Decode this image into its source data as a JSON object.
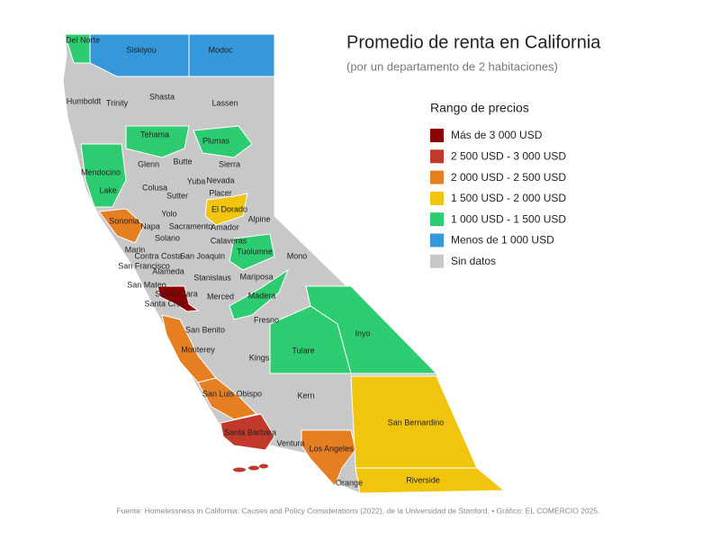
{
  "header": {
    "title": "Promedio de renta en California",
    "subtitle": "(por un departamento de 2 habitaciones)"
  },
  "legend": {
    "title": "Rango de precios",
    "items": [
      {
        "label": "Más de 3 000 USD",
        "color": "#8b0000"
      },
      {
        "label": "2 500 USD - 3 000 USD",
        "color": "#c0392b"
      },
      {
        "label": "2 000 USD - 2 500 USD",
        "color": "#e67e22"
      },
      {
        "label": "1 500 USD - 2 000 USD",
        "color": "#f1c40f"
      },
      {
        "label": "1 000 USD - 1 500 USD",
        "color": "#2ecc71"
      },
      {
        "label": "Menos de 1 000 USD",
        "color": "#3498db"
      },
      {
        "label": "Sin datos",
        "color": "#c8c8c8"
      }
    ]
  },
  "counties": [
    {
      "name": "Del Norte",
      "color": "#2ecc71"
    },
    {
      "name": "Siskiyou",
      "color": "#3498db"
    },
    {
      "name": "Modoc",
      "color": "#3498db"
    },
    {
      "name": "Shasta"
    },
    {
      "name": "Humboldt"
    },
    {
      "name": "Trinity"
    },
    {
      "name": "Lassen"
    },
    {
      "name": "Tehama",
      "color": "#2ecc71"
    },
    {
      "name": "Plumas",
      "color": "#2ecc71"
    },
    {
      "name": "Glenn"
    },
    {
      "name": "Butte"
    },
    {
      "name": "Sierra"
    },
    {
      "name": "Mendocino",
      "color": "#2ecc71"
    },
    {
      "name": "Yuba"
    },
    {
      "name": "Nevada"
    },
    {
      "name": "Lake"
    },
    {
      "name": "Colusa"
    },
    {
      "name": "Sutter"
    },
    {
      "name": "Placer"
    },
    {
      "name": "El Dorado",
      "color": "#f1c40f"
    },
    {
      "name": "Yolo"
    },
    {
      "name": "Alpine"
    },
    {
      "name": "Sonoma",
      "color": "#e67e22"
    },
    {
      "name": "Napa"
    },
    {
      "name": "Sacramento"
    },
    {
      "name": "Amador"
    },
    {
      "name": "Solano"
    },
    {
      "name": "Calaveras"
    },
    {
      "name": "Marin"
    },
    {
      "name": "Tuolumne",
      "color": "#2ecc71"
    },
    {
      "name": "Mono"
    },
    {
      "name": "Contra Costa"
    },
    {
      "name": "San Joaquin"
    },
    {
      "name": "San Francisco"
    },
    {
      "name": "Alameda"
    },
    {
      "name": "Stanislaus"
    },
    {
      "name": "Mariposa"
    },
    {
      "name": "San Mateo"
    },
    {
      "name": "Santa Clara",
      "color": "#8b0000"
    },
    {
      "name": "Merced"
    },
    {
      "name": "Madera",
      "color": "#2ecc71"
    },
    {
      "name": "Santa Cruz"
    },
    {
      "name": "Fresno"
    },
    {
      "name": "San Benito"
    },
    {
      "name": "Inyo",
      "color": "#2ecc71"
    },
    {
      "name": "Monterey",
      "color": "#e67e22"
    },
    {
      "name": "Tulare",
      "color": "#2ecc71"
    },
    {
      "name": "Kings"
    },
    {
      "name": "Kern"
    },
    {
      "name": "San Luis Obispo",
      "color": "#e67e22"
    },
    {
      "name": "San Bernardino",
      "color": "#f1c40f"
    },
    {
      "name": "Santa Barbara",
      "color": "#c0392b"
    },
    {
      "name": "Ventura"
    },
    {
      "name": "Los Angeles",
      "color": "#e67e22"
    },
    {
      "name": "Riverside",
      "color": "#f1c40f"
    },
    {
      "name": "Orange"
    }
  ],
  "source": "Fuente: Homelessness in California: Causes and Policy Considerations (2022), de la Universidad de Stanford. • Gráfico: EL COMERCIO 2025."
}
